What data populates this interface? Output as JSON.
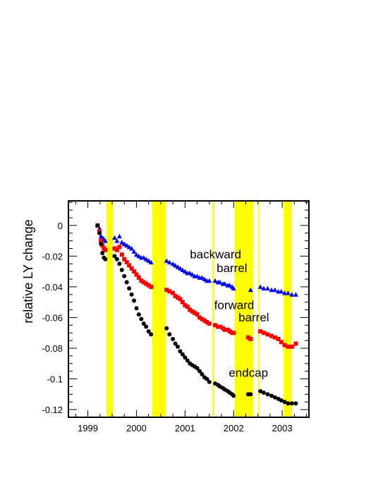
{
  "chart_data": {
    "type": "scatter",
    "title": "",
    "xlabel": "",
    "ylabel": "relative LY change",
    "xlim": [
      1998.6,
      2003.55
    ],
    "ylim": [
      -0.125,
      0.016
    ],
    "x_ticks": [
      1999,
      2000,
      2001,
      2002,
      2003
    ],
    "x_tick_labels": [
      "1999",
      "2000",
      "2001",
      "2002",
      "2003"
    ],
    "y_ticks": [
      0,
      -0.02,
      -0.04,
      -0.06,
      -0.08,
      -0.1,
      -0.12
    ],
    "y_tick_labels": [
      "0",
      "-0.02",
      "-0.04",
      "-0.06",
      "-0.08",
      "-0.1",
      "-0.12"
    ],
    "grid": false,
    "legend": "none",
    "highlight_color": "#ffff00",
    "highlight_bands": [
      [
        1999.38,
        1999.52
      ],
      [
        2000.32,
        2000.6
      ],
      [
        2001.56,
        2001.6
      ],
      [
        2002.02,
        2002.4
      ],
      [
        2002.5,
        2002.52
      ],
      [
        2003.03,
        2003.2
      ]
    ],
    "series": [
      {
        "name": "backward barrel",
        "marker": "triangle",
        "color": "#0000ee",
        "label_lines": [
          "backward",
          "barrel"
        ],
        "x": [
          1999.2,
          1999.24,
          1999.27,
          1999.3,
          1999.33,
          1999.36,
          1999.55,
          1999.6,
          1999.65,
          1999.7,
          1999.75,
          1999.8,
          1999.85,
          1999.9,
          1999.95,
          2000.0,
          2000.05,
          2000.1,
          2000.15,
          2000.2,
          2000.25,
          2000.3,
          2000.62,
          2000.68,
          2000.75,
          2000.8,
          2000.85,
          2000.9,
          2000.95,
          2001.0,
          2001.05,
          2001.1,
          2001.15,
          2001.2,
          2001.25,
          2001.3,
          2001.35,
          2001.4,
          2001.45,
          2001.5,
          2001.62,
          2001.68,
          2001.72,
          2001.78,
          2001.82,
          2001.88,
          2001.92,
          2001.97,
          2002.0,
          2002.35,
          2002.55,
          2002.62,
          2002.7,
          2002.78,
          2002.85,
          2002.92,
          2002.98,
          2003.05,
          2003.12,
          2003.2,
          2003.28
        ],
        "y": [
          0.0,
          -0.002,
          -0.007,
          -0.008,
          -0.009,
          -0.01,
          -0.008,
          -0.01,
          -0.007,
          -0.011,
          -0.012,
          -0.013,
          -0.014,
          -0.015,
          -0.017,
          -0.019,
          -0.02,
          -0.021,
          -0.021,
          -0.022,
          -0.023,
          -0.024,
          -0.023,
          -0.024,
          -0.025,
          -0.026,
          -0.027,
          -0.028,
          -0.029,
          -0.03,
          -0.031,
          -0.031,
          -0.032,
          -0.033,
          -0.033,
          -0.034,
          -0.034,
          -0.035,
          -0.036,
          -0.036,
          -0.036,
          -0.037,
          -0.037,
          -0.038,
          -0.038,
          -0.039,
          -0.039,
          -0.04,
          -0.041,
          -0.042,
          -0.04,
          -0.041,
          -0.041,
          -0.042,
          -0.042,
          -0.043,
          -0.043,
          -0.044,
          -0.044,
          -0.045,
          -0.045
        ]
      },
      {
        "name": "forward barrel",
        "marker": "square",
        "color": "#ff0000",
        "label_lines": [
          "forward",
          "barrel"
        ],
        "x": [
          1999.2,
          1999.24,
          1999.27,
          1999.3,
          1999.33,
          1999.36,
          1999.55,
          1999.6,
          1999.65,
          1999.7,
          1999.75,
          1999.8,
          1999.85,
          1999.9,
          1999.95,
          2000.0,
          2000.05,
          2000.1,
          2000.15,
          2000.2,
          2000.25,
          2000.3,
          2000.62,
          2000.68,
          2000.75,
          2000.8,
          2000.85,
          2000.9,
          2000.95,
          2001.0,
          2001.05,
          2001.1,
          2001.15,
          2001.2,
          2001.25,
          2001.3,
          2001.35,
          2001.4,
          2001.45,
          2001.5,
          2001.62,
          2001.68,
          2001.72,
          2001.78,
          2001.82,
          2001.88,
          2001.92,
          2001.97,
          2002.0,
          2002.3,
          2002.35,
          2002.55,
          2002.62,
          2002.7,
          2002.78,
          2002.85,
          2002.92,
          2002.98,
          2003.05,
          2003.12,
          2003.2,
          2003.28
        ],
        "y": [
          0.0,
          -0.004,
          -0.01,
          -0.013,
          -0.015,
          -0.016,
          -0.015,
          -0.016,
          -0.014,
          -0.019,
          -0.022,
          -0.024,
          -0.026,
          -0.028,
          -0.03,
          -0.032,
          -0.034,
          -0.036,
          -0.037,
          -0.038,
          -0.039,
          -0.04,
          -0.042,
          -0.043,
          -0.044,
          -0.046,
          -0.047,
          -0.048,
          -0.05,
          -0.052,
          -0.053,
          -0.055,
          -0.056,
          -0.057,
          -0.058,
          -0.06,
          -0.061,
          -0.062,
          -0.063,
          -0.064,
          -0.065,
          -0.066,
          -0.066,
          -0.067,
          -0.068,
          -0.068,
          -0.069,
          -0.07,
          -0.07,
          -0.073,
          -0.074,
          -0.069,
          -0.07,
          -0.071,
          -0.072,
          -0.073,
          -0.074,
          -0.076,
          -0.078,
          -0.079,
          -0.079,
          -0.077
        ]
      },
      {
        "name": "endcap",
        "marker": "circle",
        "color": "#000000",
        "label_lines": [
          "endcap"
        ],
        "x": [
          1999.2,
          1999.24,
          1999.27,
          1999.3,
          1999.33,
          1999.36,
          1999.55,
          1999.6,
          1999.65,
          1999.7,
          1999.75,
          1999.8,
          1999.85,
          1999.9,
          1999.95,
          2000.0,
          2000.05,
          2000.1,
          2000.15,
          2000.2,
          2000.25,
          2000.3,
          2000.62,
          2000.68,
          2000.75,
          2000.8,
          2000.85,
          2000.9,
          2000.95,
          2001.0,
          2001.05,
          2001.1,
          2001.15,
          2001.2,
          2001.25,
          2001.3,
          2001.35,
          2001.4,
          2001.45,
          2001.5,
          2001.62,
          2001.68,
          2001.72,
          2001.78,
          2001.82,
          2001.88,
          2001.92,
          2001.97,
          2002.0,
          2002.3,
          2002.35,
          2002.55,
          2002.62,
          2002.7,
          2002.78,
          2002.85,
          2002.92,
          2002.98,
          2003.05,
          2003.12,
          2003.2,
          2003.28
        ],
        "y": [
          0.0,
          -0.005,
          -0.012,
          -0.018,
          -0.021,
          -0.022,
          -0.02,
          -0.022,
          -0.025,
          -0.029,
          -0.033,
          -0.037,
          -0.041,
          -0.045,
          -0.049,
          -0.054,
          -0.058,
          -0.061,
          -0.064,
          -0.066,
          -0.069,
          -0.071,
          -0.067,
          -0.071,
          -0.074,
          -0.077,
          -0.079,
          -0.082,
          -0.084,
          -0.086,
          -0.088,
          -0.09,
          -0.091,
          -0.092,
          -0.093,
          -0.095,
          -0.097,
          -0.099,
          -0.1,
          -0.102,
          -0.103,
          -0.104,
          -0.105,
          -0.106,
          -0.107,
          -0.108,
          -0.109,
          -0.11,
          -0.111,
          -0.11,
          -0.11,
          -0.108,
          -0.109,
          -0.11,
          -0.111,
          -0.112,
          -0.113,
          -0.114,
          -0.115,
          -0.116,
          -0.116,
          -0.116
        ]
      }
    ]
  }
}
